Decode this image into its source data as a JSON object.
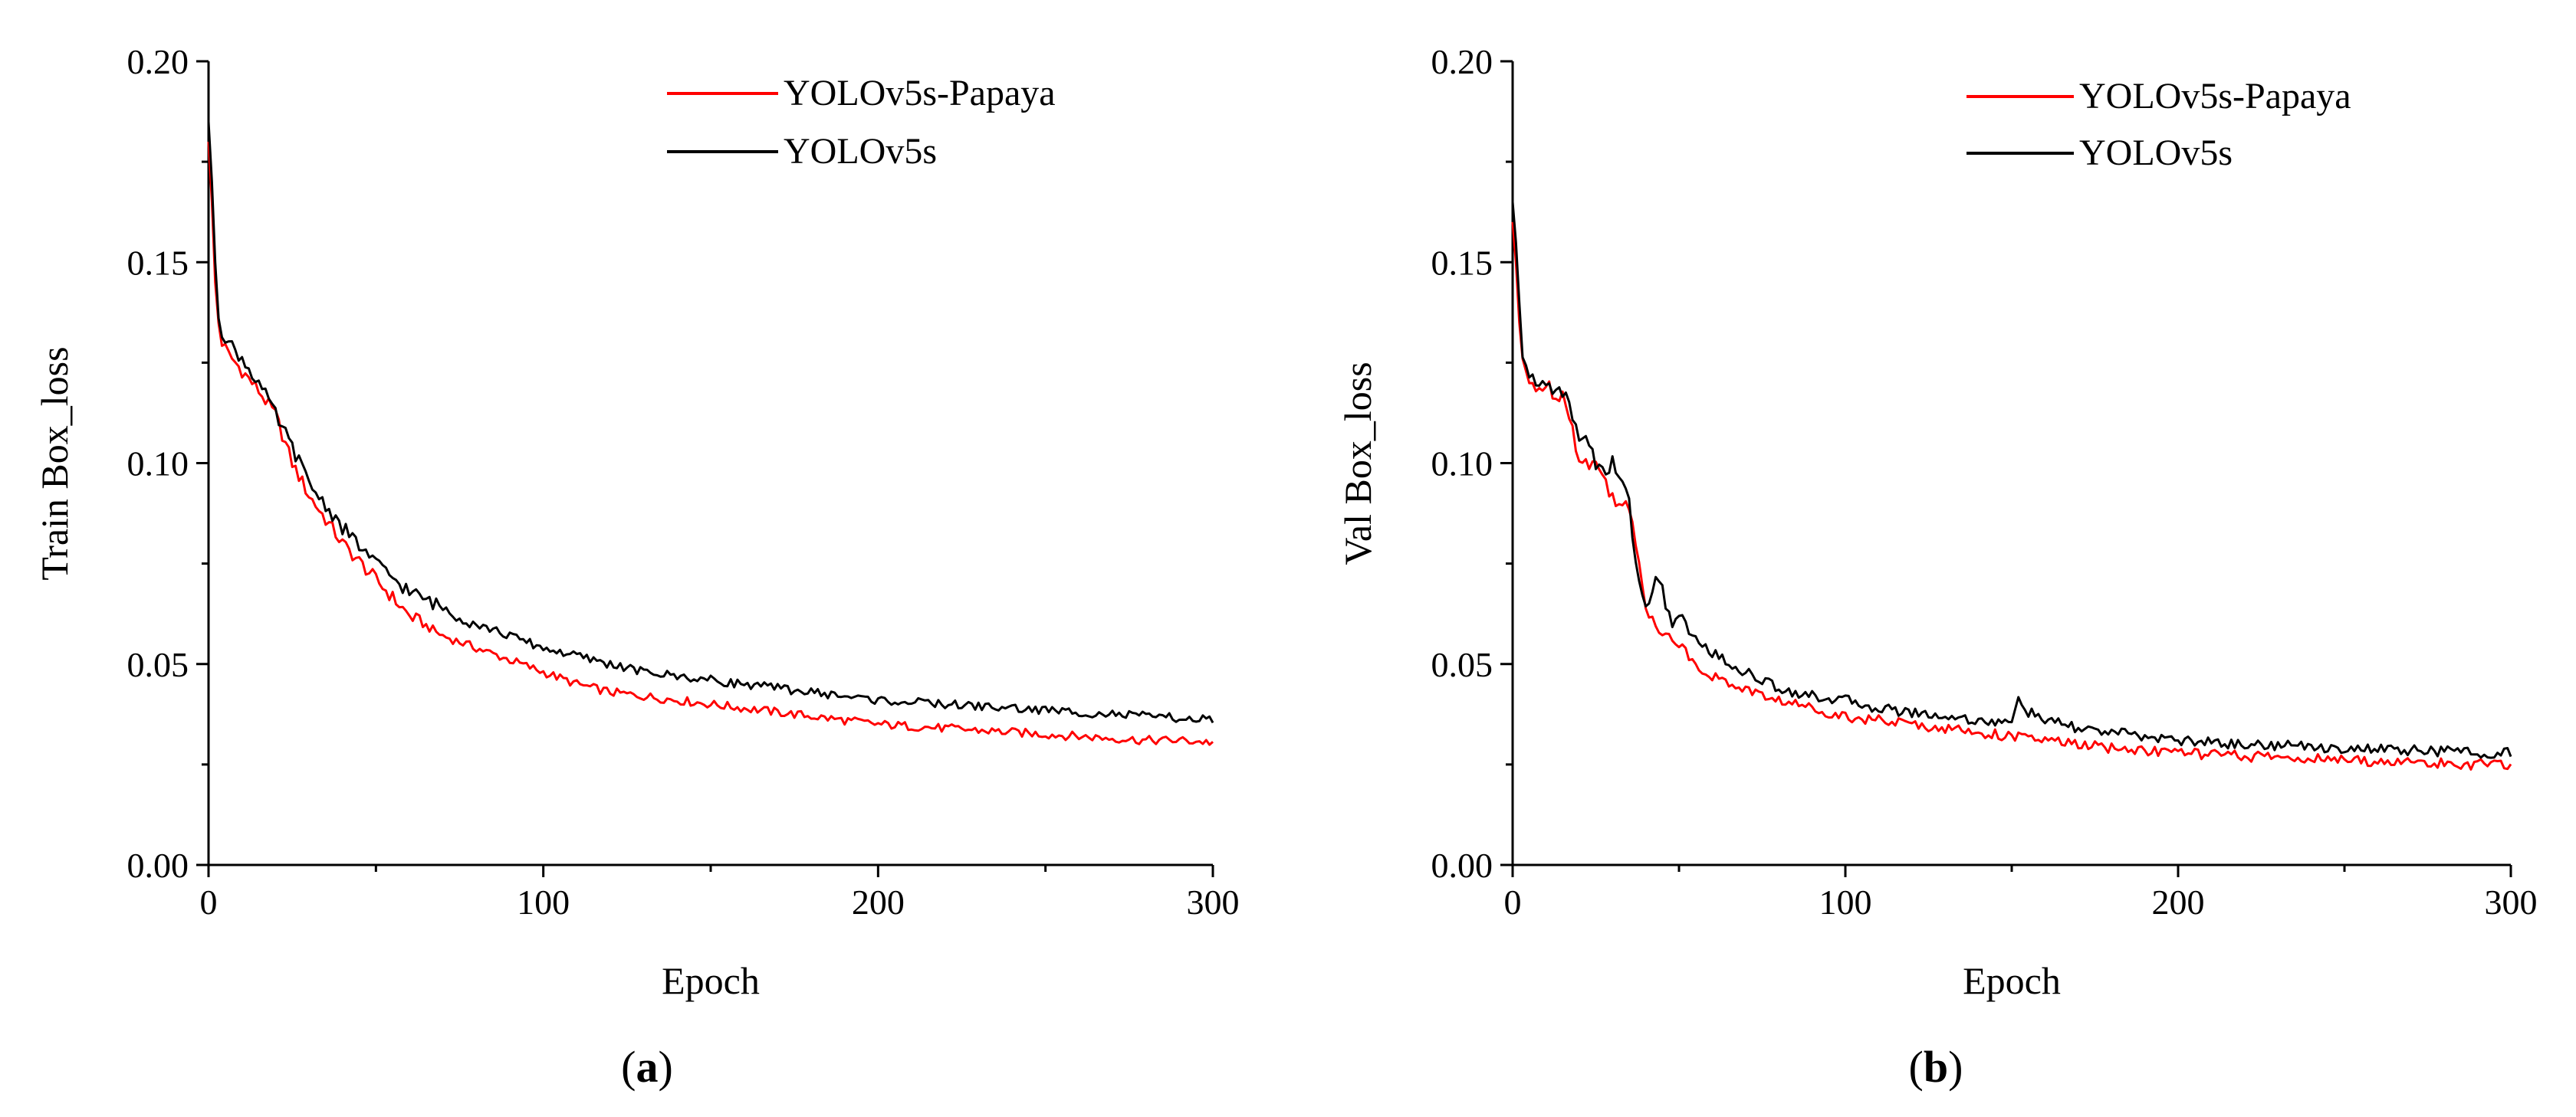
{
  "figure": {
    "panels": [
      {
        "label_prefix": "(",
        "label": "a",
        "label_suffix": ")"
      },
      {
        "label_prefix": "(",
        "label": "b",
        "label_suffix": ")"
      }
    ]
  },
  "chart_data": [
    {
      "type": "line",
      "title": "",
      "xlabel": "Epoch",
      "ylabel": "Train Box_loss",
      "xlim": [
        0,
        300
      ],
      "ylim": [
        0,
        0.2
      ],
      "xticks": [
        0,
        100,
        200,
        300
      ],
      "xtick_labels": [
        "0",
        "100",
        "200",
        "300"
      ],
      "yticks": [
        0,
        0.05,
        0.1,
        0.15,
        0.2
      ],
      "ytick_labels": [
        "0.00",
        "0.05",
        "0.10",
        "0.15",
        "0.20"
      ],
      "legend": "top-right",
      "series": [
        {
          "name": "YOLOv5s-Papaya",
          "color": "#ff0000",
          "x": [
            0,
            1,
            2,
            3,
            4,
            6,
            8,
            10,
            15,
            20,
            25,
            30,
            40,
            50,
            60,
            70,
            80,
            90,
            100,
            110,
            120,
            130,
            140,
            150,
            160,
            170,
            180,
            190,
            200,
            210,
            220,
            230,
            240,
            250,
            260,
            270,
            280,
            290,
            300
          ],
          "y": [
            0.18,
            0.165,
            0.145,
            0.135,
            0.13,
            0.127,
            0.125,
            0.123,
            0.118,
            0.112,
            0.1,
            0.092,
            0.08,
            0.071,
            0.062,
            0.057,
            0.054,
            0.051,
            0.048,
            0.045,
            0.043,
            0.042,
            0.041,
            0.04,
            0.039,
            0.038,
            0.037,
            0.036,
            0.035,
            0.0345,
            0.034,
            0.0335,
            0.033,
            0.0325,
            0.032,
            0.0315,
            0.031,
            0.031,
            0.0305
          ]
        },
        {
          "name": "YOLOv5s",
          "color": "#000000",
          "x": [
            0,
            1,
            2,
            3,
            4,
            6,
            8,
            10,
            15,
            20,
            25,
            30,
            40,
            50,
            60,
            70,
            80,
            90,
            100,
            110,
            120,
            130,
            140,
            150,
            160,
            170,
            180,
            190,
            200,
            210,
            220,
            230,
            240,
            250,
            260,
            270,
            280,
            290,
            300
          ],
          "y": [
            0.185,
            0.17,
            0.15,
            0.137,
            0.133,
            0.13,
            0.128,
            0.126,
            0.12,
            0.112,
            0.104,
            0.095,
            0.084,
            0.075,
            0.068,
            0.064,
            0.06,
            0.057,
            0.054,
            0.052,
            0.05,
            0.048,
            0.047,
            0.046,
            0.045,
            0.044,
            0.043,
            0.042,
            0.041,
            0.0405,
            0.04,
            0.0395,
            0.039,
            0.0385,
            0.038,
            0.0375,
            0.037,
            0.0365,
            0.036
          ]
        }
      ]
    },
    {
      "type": "line",
      "title": "",
      "xlabel": "Epoch",
      "ylabel": "Val Box_loss",
      "xlim": [
        0,
        300
      ],
      "ylim": [
        0,
        0.2
      ],
      "xticks": [
        0,
        100,
        200,
        300
      ],
      "xtick_labels": [
        "0",
        "100",
        "200",
        "300"
      ],
      "yticks": [
        0,
        0.05,
        0.1,
        0.15,
        0.2
      ],
      "ytick_labels": [
        "0.00",
        "0.05",
        "0.10",
        "0.15",
        "0.20"
      ],
      "legend": "top-right",
      "series": [
        {
          "name": "YOLOv5s-Papaya",
          "color": "#ff0000",
          "x": [
            0,
            1,
            2,
            3,
            5,
            8,
            10,
            12,
            15,
            18,
            20,
            22,
            25,
            28,
            30,
            33,
            35,
            38,
            40,
            43,
            45,
            48,
            50,
            55,
            60,
            65,
            70,
            75,
            80,
            90,
            100,
            110,
            120,
            130,
            140,
            150,
            160,
            170,
            180,
            190,
            200,
            210,
            220,
            230,
            240,
            250,
            260,
            270,
            280,
            290,
            300
          ],
          "y": [
            0.16,
            0.15,
            0.135,
            0.125,
            0.12,
            0.119,
            0.119,
            0.118,
            0.117,
            0.11,
            0.1,
            0.1,
            0.1,
            0.095,
            0.092,
            0.09,
            0.088,
            0.075,
            0.065,
            0.06,
            0.058,
            0.056,
            0.055,
            0.05,
            0.047,
            0.045,
            0.044,
            0.042,
            0.041,
            0.039,
            0.037,
            0.036,
            0.035,
            0.034,
            0.033,
            0.032,
            0.031,
            0.03,
            0.029,
            0.0285,
            0.028,
            0.0275,
            0.027,
            0.0268,
            0.0265,
            0.026,
            0.0258,
            0.0255,
            0.0252,
            0.025,
            0.0248
          ]
        },
        {
          "name": "YOLOv5s",
          "color": "#000000",
          "x": [
            0,
            1,
            2,
            3,
            5,
            8,
            10,
            12,
            15,
            18,
            20,
            22,
            25,
            28,
            30,
            33,
            35,
            38,
            40,
            43,
            45,
            48,
            50,
            55,
            60,
            65,
            70,
            75,
            80,
            90,
            100,
            110,
            120,
            130,
            140,
            150,
            152,
            155,
            160,
            170,
            180,
            190,
            200,
            210,
            220,
            230,
            240,
            250,
            260,
            270,
            280,
            290,
            300
          ],
          "y": [
            0.165,
            0.155,
            0.14,
            0.128,
            0.121,
            0.119,
            0.12,
            0.119,
            0.118,
            0.112,
            0.105,
            0.108,
            0.1,
            0.097,
            0.1,
            0.095,
            0.09,
            0.07,
            0.065,
            0.07,
            0.068,
            0.06,
            0.062,
            0.056,
            0.053,
            0.05,
            0.048,
            0.046,
            0.044,
            0.042,
            0.041,
            0.039,
            0.038,
            0.037,
            0.036,
            0.035,
            0.042,
            0.038,
            0.036,
            0.034,
            0.033,
            0.032,
            0.031,
            0.0305,
            0.03,
            0.0298,
            0.0295,
            0.029,
            0.0288,
            0.0285,
            0.0283,
            0.028,
            0.0278
          ]
        }
      ]
    }
  ]
}
